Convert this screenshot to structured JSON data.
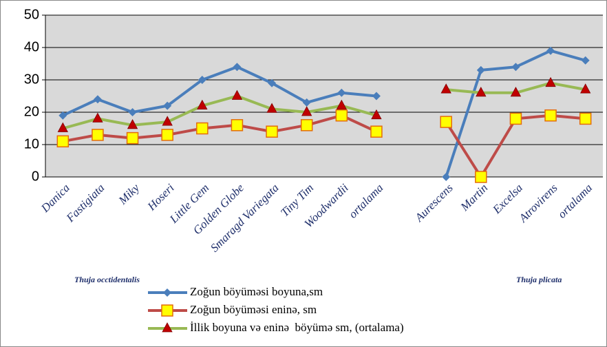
{
  "chart_data": {
    "type": "line",
    "categories": [
      "Danica",
      "Fastigiata",
      "Miky",
      "Hoseri",
      "Little Gem",
      "Golden Globe",
      "Smaragd Variegata",
      "Tiny Tim",
      "Woodwardii",
      "ortalama",
      null,
      "Aurescens",
      "Martin",
      "Excelsa",
      "Atrovirens",
      "ortalama"
    ],
    "series": [
      {
        "name": "Zoğun böyüməsi boyuna,sm",
        "color": "#4a7ebb",
        "marker": "diamond",
        "values": [
          19,
          24,
          20,
          22,
          30,
          34,
          29,
          23,
          26,
          25,
          null,
          0,
          33,
          34,
          39,
          36
        ]
      },
      {
        "name": "Zoğun böyüməsi eninə, sm",
        "color": "#be4b48",
        "marker": "square",
        "values": [
          11,
          13,
          12,
          13,
          15,
          16,
          14,
          16,
          19,
          14,
          null,
          17,
          0,
          18,
          19,
          18
        ]
      },
      {
        "name": "İllik boyuna və eninə  böyümə sm, (ortalama)",
        "color": "#98b954",
        "marker": "triangle",
        "values": [
          15,
          18,
          16,
          17,
          22,
          25,
          21,
          20,
          22,
          19,
          null,
          27,
          26,
          26,
          29,
          27
        ]
      }
    ],
    "annotations": [
      "Thuja occtidentalis",
      "Thuja plicata"
    ],
    "ylim": [
      0,
      50
    ],
    "yticks": [
      0,
      10,
      20,
      30,
      40,
      50
    ],
    "grid": true
  }
}
